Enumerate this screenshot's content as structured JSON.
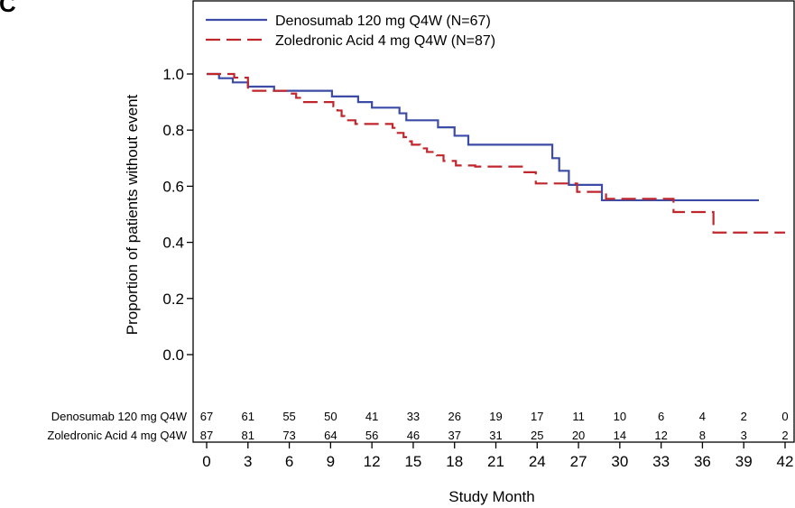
{
  "panel_label": "C",
  "chart_data": {
    "type": "line",
    "title": "",
    "xlabel": "Study Month",
    "ylabel": "Proportion of patients without event",
    "xlim": [
      0,
      42
    ],
    "ylim": [
      0,
      1.0
    ],
    "xticks": [
      0,
      3,
      6,
      9,
      12,
      15,
      18,
      21,
      24,
      27,
      30,
      33,
      36,
      39,
      42
    ],
    "yticks": [
      0.0,
      0.2,
      0.4,
      0.6,
      0.8,
      1.0
    ],
    "ytick_labels": [
      "0.0",
      "0.2",
      "0.4",
      "0.6",
      "0.8",
      "1.0"
    ],
    "legend_position": "top-left",
    "series": [
      {
        "name": "Denosumab 120 mg Q4W (N=67)",
        "color": "#3b4ba6",
        "style": "solid",
        "x": [
          0,
          0.9,
          1.9,
          3.0,
          4.9,
          9.1,
          11.0,
          12.0,
          14.0,
          14.5,
          16.8,
          18.0,
          19.0,
          25.1,
          25.6,
          26.3,
          28.7,
          40.1
        ],
        "y": [
          1.0,
          0.985,
          0.97,
          0.955,
          0.94,
          0.92,
          0.9,
          0.88,
          0.86,
          0.835,
          0.81,
          0.78,
          0.748,
          0.7,
          0.655,
          0.605,
          0.55,
          0.55
        ]
      },
      {
        "name": "Zoledronic Acid 4 mg Q4W (N=87)",
        "color": "#c0272d",
        "style": "dashed",
        "x": [
          0,
          2.0,
          3.0,
          6.0,
          6.5,
          6.9,
          9.2,
          9.5,
          9.8,
          10.0,
          10.2,
          10.8,
          13.5,
          13.8,
          14.3,
          14.6,
          14.9,
          15.5,
          16.0,
          16.7,
          17.2,
          18.1,
          19.5,
          23.0,
          23.9,
          26.9,
          29.0,
          33.9,
          36.8,
          42
        ],
        "y": [
          1.0,
          0.987,
          0.94,
          0.93,
          0.915,
          0.9,
          0.885,
          0.87,
          0.85,
          0.84,
          0.835,
          0.822,
          0.808,
          0.79,
          0.775,
          0.76,
          0.748,
          0.735,
          0.722,
          0.71,
          0.69,
          0.674,
          0.67,
          0.65,
          0.61,
          0.58,
          0.555,
          0.508,
          0.435,
          0.435
        ]
      }
    ],
    "risk_table": {
      "rows": [
        {
          "label": "Denosumab 120 mg Q4W",
          "values": [
            "67",
            "61",
            "55",
            "50",
            "41",
            "33",
            "26",
            "19",
            "17",
            "11",
            "10",
            "6",
            "4",
            "2",
            "0"
          ]
        },
        {
          "label": "Zoledronic Acid 4 mg Q4W",
          "values": [
            "87",
            "81",
            "73",
            "64",
            "56",
            "46",
            "37",
            "31",
            "25",
            "20",
            "14",
            "12",
            "8",
            "3",
            "2"
          ]
        }
      ]
    }
  }
}
